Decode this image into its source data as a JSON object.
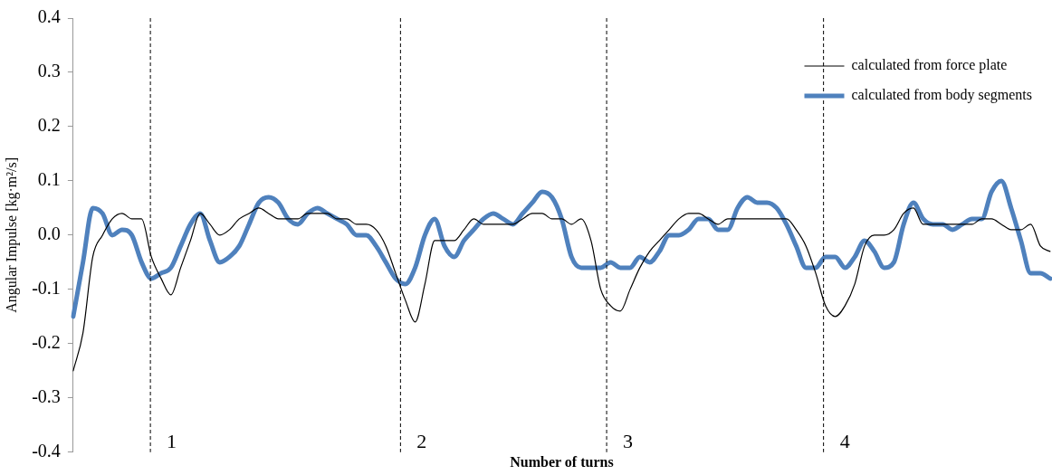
{
  "chart_data": {
    "type": "line",
    "xlabel": "Number of turns",
    "ylabel": "Angular Impulse [kg·m²/s]",
    "categories": [
      null,
      null,
      null,
      null,
      null,
      null,
      null,
      null,
      null,
      null,
      null,
      null,
      null,
      null,
      null,
      null,
      null,
      null,
      null,
      null,
      null,
      null,
      null,
      null,
      null,
      null,
      null,
      null,
      null,
      null,
      null,
      null,
      null,
      null,
      null,
      null,
      null,
      null,
      null,
      null,
      null,
      null,
      null,
      null,
      null,
      null,
      null,
      null,
      null,
      null,
      null,
      null,
      null,
      null,
      null,
      null,
      null,
      null,
      null,
      null,
      null,
      null,
      null,
      null,
      null,
      null,
      null,
      null,
      null,
      null,
      null,
      null,
      null,
      null,
      null,
      null,
      null,
      null,
      null,
      null,
      null,
      null,
      null,
      null,
      null,
      null,
      null,
      null,
      null,
      null,
      null,
      null,
      null,
      null,
      null,
      null,
      null,
      null,
      null,
      null,
      null
    ],
    "ylim": [
      -0.4,
      0.4
    ],
    "yticks": [
      -0.4,
      -0.3,
      -0.2,
      -0.1,
      {
        "value": 0,
        "label": "0.0"
      },
      0.1,
      0.2,
      0.3,
      0.4
    ],
    "tick_labels": "y",
    "grid": false,
    "legend": "top right",
    "marker": "none",
    "line_style": "solid",
    "annotations": [
      "1",
      "2",
      "3",
      "4"
    ],
    "series": [
      {
        "name": "calculated from force plate",
        "color": "#000000",
        "values": [
          -0.25,
          -0.18,
          -0.04,
          0.0,
          0.03,
          0.04,
          0.03,
          0.03,
          -0.04,
          -0.08,
          -0.11,
          -0.06,
          -0.01,
          0.04,
          0.02,
          0.0,
          0.01,
          0.03,
          0.04,
          0.05,
          0.04,
          0.03,
          0.03,
          0.03,
          0.04,
          0.04,
          0.04,
          0.03,
          0.03,
          0.02,
          0.02,
          0.01,
          -0.02,
          -0.07,
          -0.12,
          -0.16,
          -0.09,
          -0.01,
          -0.01,
          -0.01,
          0.01,
          0.03,
          0.02,
          0.02,
          0.02,
          0.02,
          0.03,
          0.04,
          0.04,
          0.03,
          0.03,
          0.02,
          0.03,
          -0.01,
          -0.1,
          -0.13,
          -0.14,
          -0.1,
          -0.06,
          -0.03,
          -0.01,
          0.01,
          0.03,
          0.04,
          0.04,
          0.03,
          0.02,
          0.03,
          0.03,
          0.03,
          0.03,
          0.03,
          0.03,
          0.03,
          0.01,
          -0.02,
          -0.07,
          -0.13,
          -0.15,
          -0.13,
          -0.09,
          -0.02,
          0.0,
          0.0,
          0.01,
          0.04,
          0.05,
          0.02,
          0.02,
          0.02,
          0.02,
          0.02,
          0.02,
          0.03,
          0.03,
          0.02,
          0.01,
          0.01,
          0.02,
          -0.02,
          -0.03
        ]
      },
      {
        "name": "calculated from body segments",
        "color": "#4f81bd",
        "values": [
          -0.15,
          -0.05,
          0.05,
          0.04,
          0.0,
          0.01,
          0.0,
          -0.05,
          -0.08,
          -0.07,
          -0.06,
          -0.02,
          0.02,
          0.04,
          -0.01,
          -0.05,
          -0.04,
          -0.02,
          0.02,
          0.06,
          0.07,
          0.06,
          0.03,
          0.02,
          0.04,
          0.05,
          0.04,
          0.03,
          0.02,
          0.0,
          0.0,
          -0.02,
          -0.05,
          -0.08,
          -0.09,
          -0.06,
          0.0,
          0.03,
          -0.02,
          -0.04,
          -0.01,
          0.01,
          0.03,
          0.04,
          0.03,
          0.02,
          0.04,
          0.06,
          0.08,
          0.07,
          0.03,
          -0.04,
          -0.06,
          -0.06,
          -0.06,
          -0.05,
          -0.06,
          -0.06,
          -0.04,
          -0.05,
          -0.03,
          0.0,
          0.0,
          0.01,
          0.03,
          0.03,
          0.01,
          0.01,
          0.05,
          0.07,
          0.06,
          0.06,
          0.05,
          0.02,
          -0.02,
          -0.06,
          -0.06,
          -0.04,
          -0.04,
          -0.06,
          -0.04,
          -0.01,
          -0.03,
          -0.06,
          -0.05,
          0.02,
          0.06,
          0.03,
          0.02,
          0.02,
          0.01,
          0.02,
          0.03,
          0.03,
          0.08,
          0.1,
          0.05,
          -0.01,
          -0.07,
          -0.07,
          -0.08
        ]
      }
    ]
  }
}
